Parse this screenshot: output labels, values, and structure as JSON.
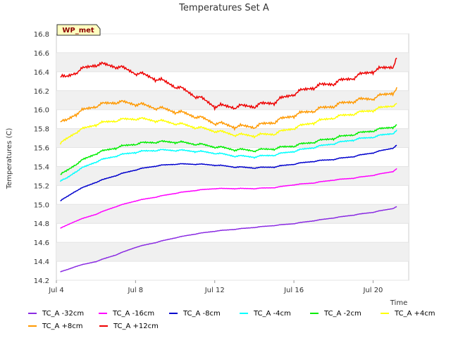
{
  "chart_data": {
    "type": "line",
    "title": "Temperatures Set A",
    "xlabel": "Time",
    "ylabel": "Temperatures (C)",
    "badge": "WP_met",
    "xlim": [
      4.0,
      21.8
    ],
    "ylim": [
      14.2,
      16.8
    ],
    "x_ticks": [
      {
        "value": 4,
        "label": "Jul 4"
      },
      {
        "value": 8,
        "label": "Jul 8"
      },
      {
        "value": 12,
        "label": "Jul 12"
      },
      {
        "value": 16,
        "label": "Jul 16"
      },
      {
        "value": 20,
        "label": "Jul 20"
      }
    ],
    "y_ticks": [
      "14.2",
      "14.4",
      "14.6",
      "14.8",
      "15.0",
      "15.2",
      "15.4",
      "15.6",
      "15.8",
      "16.0",
      "16.2",
      "16.4",
      "16.6",
      "16.8"
    ],
    "grid_bands": true,
    "legend_position": "bottom",
    "series": [
      {
        "name": "TC_A -32cm",
        "color": "#8a2be2",
        "x": [
          4.2,
          4.5,
          5,
          6,
          7,
          8,
          9,
          10,
          11,
          12,
          13,
          14,
          15,
          16,
          17,
          18,
          19,
          20,
          21,
          21.2
        ],
        "values": [
          14.29,
          14.31,
          14.35,
          14.4,
          14.47,
          14.55,
          14.6,
          14.65,
          14.69,
          14.72,
          14.74,
          14.76,
          14.78,
          14.8,
          14.83,
          14.86,
          14.89,
          14.92,
          14.96,
          14.98
        ]
      },
      {
        "name": "TC_A -16cm",
        "color": "#ff00ff",
        "x": [
          4.2,
          4.5,
          5,
          6,
          7,
          8,
          9,
          10,
          11,
          12,
          13,
          14,
          15,
          16,
          17,
          18,
          19,
          20,
          21,
          21.2
        ],
        "values": [
          14.75,
          14.78,
          14.83,
          14.9,
          14.98,
          15.04,
          15.08,
          15.12,
          15.15,
          15.17,
          15.17,
          15.17,
          15.18,
          15.21,
          15.23,
          15.26,
          15.28,
          15.31,
          15.35,
          15.38
        ]
      },
      {
        "name": "TC_A -8cm",
        "color": "#0000cd",
        "x": [
          4.2,
          4.5,
          5,
          6,
          7,
          8,
          9,
          10,
          11,
          12,
          13,
          14,
          15,
          16,
          17,
          18,
          19,
          20,
          21,
          21.2
        ],
        "values": [
          15.04,
          15.08,
          15.15,
          15.24,
          15.31,
          15.37,
          15.41,
          15.43,
          15.43,
          15.42,
          15.4,
          15.39,
          15.4,
          15.43,
          15.46,
          15.48,
          15.51,
          15.55,
          15.6,
          15.63
        ]
      },
      {
        "name": "TC_A -4cm",
        "color": "#00ffff",
        "x": [
          4.2,
          4.5,
          5,
          6,
          7,
          8,
          9,
          10,
          11,
          12,
          13,
          14,
          15,
          16,
          17,
          18,
          19,
          20,
          21,
          21.2
        ],
        "values": [
          15.25,
          15.28,
          15.36,
          15.46,
          15.52,
          15.56,
          15.58,
          15.58,
          15.57,
          15.55,
          15.52,
          15.51,
          15.53,
          15.57,
          15.61,
          15.65,
          15.69,
          15.72,
          15.76,
          15.79
        ]
      },
      {
        "name": "TC_A -2cm",
        "color": "#00ee00",
        "x": [
          4.2,
          4.5,
          5,
          6,
          7,
          8,
          9,
          10,
          11,
          12,
          13,
          14,
          15,
          16,
          17,
          18,
          19,
          20,
          21,
          21.2
        ],
        "values": [
          15.32,
          15.36,
          15.44,
          15.55,
          15.61,
          15.65,
          15.67,
          15.67,
          15.65,
          15.62,
          15.59,
          15.58,
          15.6,
          15.63,
          15.67,
          15.71,
          15.75,
          15.79,
          15.83,
          15.85
        ]
      },
      {
        "name": "TC_A +4cm",
        "color": "#ffff00",
        "x": [
          4.2,
          4.5,
          5,
          6,
          7,
          8,
          9,
          10,
          11,
          12,
          13,
          14,
          15,
          16,
          17,
          18,
          19,
          20,
          21,
          21.2
        ],
        "values": [
          15.65,
          15.7,
          15.78,
          15.86,
          15.9,
          15.92,
          15.9,
          15.87,
          15.83,
          15.79,
          15.75,
          15.74,
          15.76,
          15.82,
          15.88,
          15.93,
          15.97,
          16.01,
          16.06,
          16.08
        ]
      },
      {
        "name": "TC_A +8cm",
        "color": "#ff9900",
        "x": [
          4.2,
          4.5,
          5,
          6,
          7,
          8,
          9,
          10,
          11,
          12,
          13,
          14,
          15,
          16,
          17,
          18,
          19,
          20,
          21,
          21.2
        ],
        "values": [
          15.88,
          15.9,
          15.98,
          16.06,
          16.1,
          16.08,
          16.04,
          16.0,
          15.95,
          15.88,
          15.84,
          15.84,
          15.89,
          15.96,
          16.01,
          16.06,
          16.11,
          16.14,
          16.2,
          16.24
        ]
      },
      {
        "name": "TC_A +12cm",
        "color": "#ee0000",
        "x": [
          4.2,
          4.5,
          5,
          6,
          7,
          8,
          9,
          10,
          11,
          12,
          13,
          14,
          15,
          16,
          17,
          18,
          19,
          20,
          21,
          21.2
        ],
        "values": [
          16.36,
          16.36,
          16.42,
          16.5,
          16.48,
          16.41,
          16.35,
          16.27,
          16.17,
          16.06,
          16.05,
          16.06,
          16.1,
          16.19,
          16.26,
          16.3,
          16.36,
          16.43,
          16.48,
          16.57
        ]
      }
    ]
  }
}
